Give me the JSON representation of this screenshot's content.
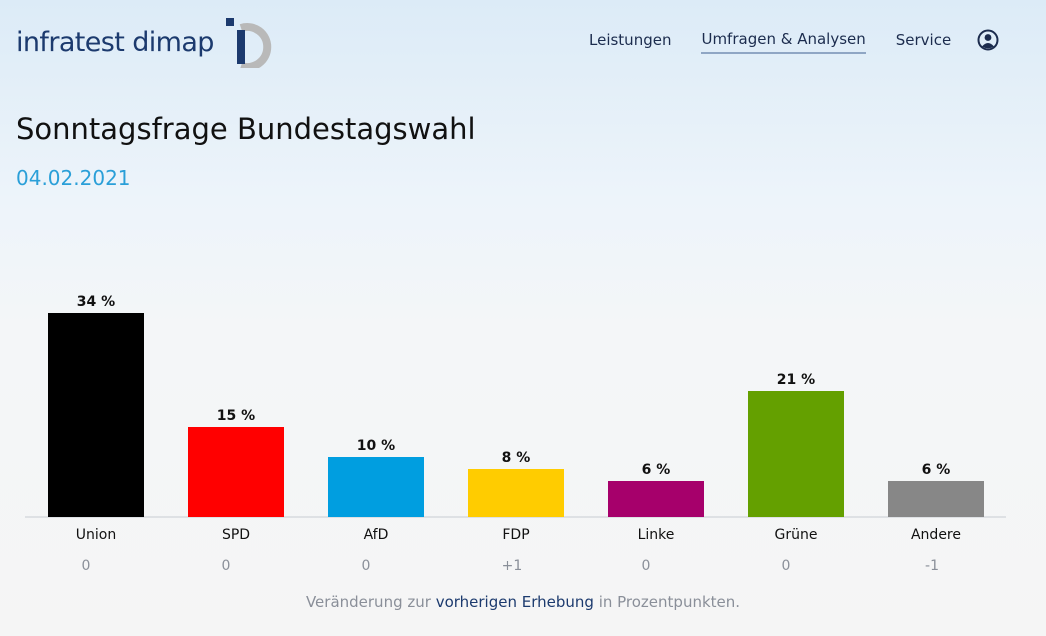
{
  "brand": {
    "name": "infratest dimap",
    "colors": {
      "navy": "#1c3a6e",
      "gray": "#b9b9b9"
    }
  },
  "nav": {
    "items": [
      {
        "label": "Leistungen",
        "active": false
      },
      {
        "label": "Umfragen & Analysen",
        "active": true
      },
      {
        "label": "Service",
        "active": false
      }
    ],
    "account_icon": "user-circle-icon"
  },
  "page": {
    "title": "Sonntagsfrage Bundestagswahl",
    "date": "04.02.2021"
  },
  "chart_data": {
    "type": "bar",
    "categories": [
      "Union",
      "SPD",
      "AfD",
      "FDP",
      "Linke",
      "Grüne",
      "Andere"
    ],
    "values": [
      34,
      15,
      10,
      8,
      6,
      21,
      6
    ],
    "value_labels": [
      "34 %",
      "15 %",
      "10 %",
      "8 %",
      "6 %",
      "21 %",
      "6 %"
    ],
    "changes": [
      "0",
      "0",
      "0",
      "+1",
      "0",
      "0",
      "-1"
    ],
    "colors": [
      "#000000",
      "#ff0000",
      "#009ee0",
      "#ffcc00",
      "#a6006b",
      "#64a000",
      "#878787"
    ],
    "ylim": [
      0,
      34
    ],
    "grid": false
  },
  "footnote": {
    "before": "Veränderung zur ",
    "link": "vorherigen Erhebung",
    "after": " in Prozentpunkten."
  }
}
